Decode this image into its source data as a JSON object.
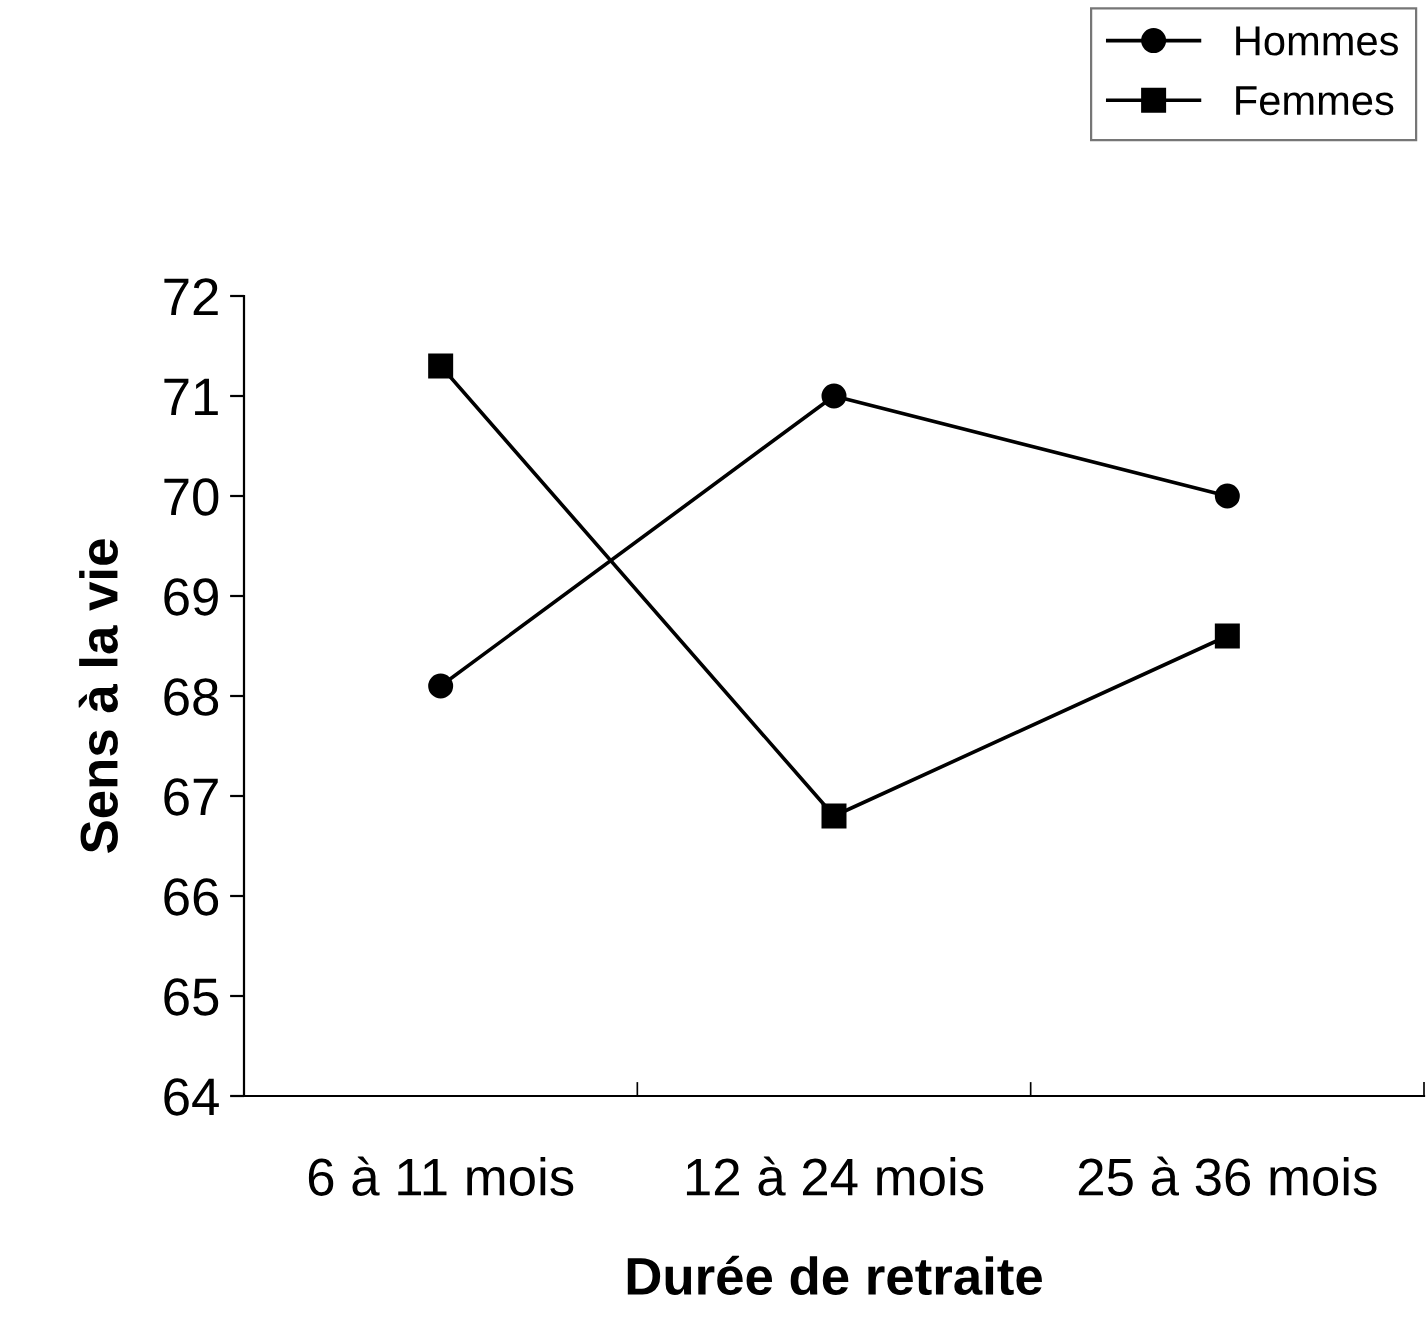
{
  "chart_data": {
    "type": "line",
    "xlabel": "Durée de retraite",
    "ylabel": "Sens à la vie",
    "categories": [
      "6 à 11 mois",
      "12 à 24 mois",
      "25 à 36 mois"
    ],
    "series": [
      {
        "name": "Hommes",
        "color": "#000000",
        "marker": "circle",
        "values": [
          68.1,
          71.0,
          70.0
        ]
      },
      {
        "name": "Femmes",
        "color": "#000000",
        "marker": "square",
        "values": [
          71.3,
          66.8,
          68.6
        ]
      }
    ],
    "ylim": [
      64,
      72
    ],
    "yticks": [
      64,
      65,
      66,
      67,
      68,
      69,
      70,
      71,
      72
    ],
    "grid": false,
    "legend": "top right",
    "line_style": "solid"
  }
}
